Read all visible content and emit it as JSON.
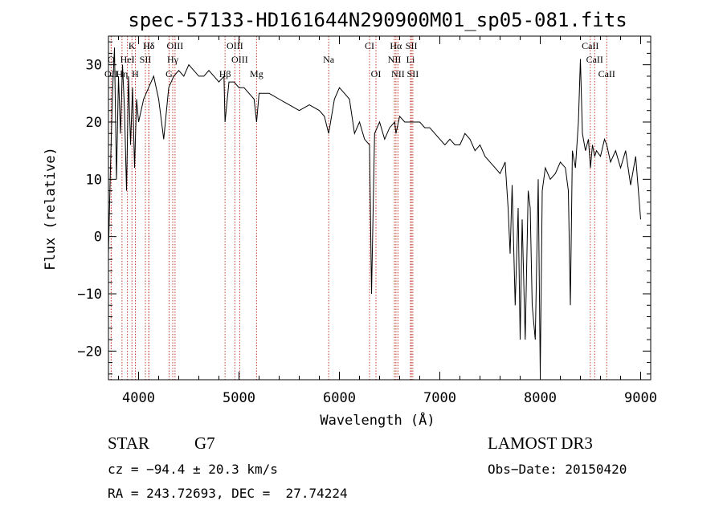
{
  "chart_data": {
    "type": "line",
    "title": "spec-57133-HD161644N290900M01_sp05-081.fits",
    "xlabel": "Wavelength (Å)",
    "ylabel": "Flux (relative)",
    "xlim": [
      3700,
      9100
    ],
    "ylim": [
      -25,
      35
    ],
    "xticks": [
      4000,
      5000,
      6000,
      7000,
      8000,
      9000
    ],
    "yticks": [
      -20,
      -10,
      0,
      10,
      20,
      30
    ],
    "grid": false,
    "series": [
      {
        "x": [
          3700,
          3720,
          3740,
          3760,
          3780,
          3800,
          3820,
          3840,
          3860,
          3880,
          3900,
          3920,
          3940,
          3960,
          3980,
          4000,
          4050,
          4100,
          4150,
          4200,
          4250,
          4300,
          4350,
          4400,
          4450,
          4500,
          4550,
          4600,
          4650,
          4700,
          4750,
          4800,
          4850,
          4861,
          4900,
          4950,
          5000,
          5050,
          5100,
          5150,
          5175,
          5200,
          5300,
          5400,
          5500,
          5600,
          5700,
          5800,
          5850,
          5893,
          5950,
          6000,
          6050,
          6100,
          6150,
          6200,
          6250,
          6300,
          6320,
          6350,
          6400,
          6450,
          6500,
          6550,
          6563,
          6600,
          6650,
          6700,
          6750,
          6800,
          6850,
          6900,
          6950,
          7000,
          7050,
          7100,
          7150,
          7200,
          7250,
          7300,
          7350,
          7400,
          7450,
          7500,
          7550,
          7600,
          7650,
          7680,
          7700,
          7720,
          7750,
          7780,
          7800,
          7820,
          7850,
          7880,
          7900,
          7920,
          7950,
          7980,
          8000,
          8020,
          8050,
          8100,
          8150,
          8200,
          8250,
          8280,
          8300,
          8320,
          8350,
          8380,
          8400,
          8420,
          8450,
          8480,
          8500,
          8520,
          8542,
          8560,
          8600,
          8640,
          8662,
          8700,
          8750,
          8800,
          8850,
          8900,
          8950,
          9000
        ],
        "values": [
          -3,
          12,
          25,
          33,
          10,
          28,
          18,
          30,
          22,
          8,
          28,
          16,
          26,
          12,
          24,
          20,
          24,
          26,
          28,
          24,
          17,
          26,
          28,
          29,
          28,
          30,
          29,
          28,
          28,
          29,
          28,
          27,
          28,
          20,
          27,
          27,
          26,
          26,
          25,
          24,
          20,
          25,
          25,
          24,
          23,
          22,
          23,
          22,
          21,
          18,
          24,
          26,
          25,
          24,
          18,
          20,
          17,
          16,
          -10,
          18,
          20,
          17,
          19,
          20,
          18,
          21,
          20,
          20,
          20,
          20,
          19,
          19,
          18,
          17,
          16,
          17,
          16,
          16,
          18,
          17,
          15,
          16,
          14,
          13,
          12,
          11,
          13,
          5,
          -3,
          9,
          -12,
          5,
          -18,
          3,
          -18,
          8,
          5,
          -12,
          -18,
          10,
          -24,
          8,
          12,
          10,
          11,
          13,
          12,
          8,
          -12,
          15,
          12,
          20,
          31,
          18,
          15,
          17,
          12,
          16,
          14,
          15,
          14,
          17,
          16,
          13,
          15,
          12,
          15,
          9,
          14,
          3
        ],
        "color": "#000000"
      }
    ],
    "lines": [
      {
        "label": "Hδ",
        "x": 4102,
        "row": 1
      },
      {
        "label": "K",
        "x": 3934,
        "row": 1
      },
      {
        "label": "Hδ",
        "x": 4102,
        "row": 1
      },
      {
        "label": "OIII",
        "x": 4363,
        "row": 1
      },
      {
        "label": "OIII",
        "x": 4959,
        "row": 1
      },
      {
        "label": "CI",
        "x": 6300,
        "row": 1
      },
      {
        "label": "Hα",
        "x": 6563,
        "row": 1
      },
      {
        "label": "SII",
        "x": 6717,
        "row": 1
      },
      {
        "label": "CaII",
        "x": 8498,
        "row": 1
      },
      {
        "label": "O",
        "x": 3727,
        "row": 2
      },
      {
        "label": "HeI",
        "x": 3889,
        "row": 2
      },
      {
        "label": "SII",
        "x": 4068,
        "row": 2
      },
      {
        "label": "Hγ",
        "x": 4340,
        "row": 2
      },
      {
        "label": "OIII",
        "x": 5007,
        "row": 2
      },
      {
        "label": "Na",
        "x": 5893,
        "row": 2
      },
      {
        "label": "NII",
        "x": 6548,
        "row": 2
      },
      {
        "label": "Li",
        "x": 6708,
        "row": 2
      },
      {
        "label": "CaII",
        "x": 8542,
        "row": 2
      },
      {
        "label": "OII",
        "x": 3727,
        "row": 3
      },
      {
        "label": "Hη",
        "x": 3835,
        "row": 3
      },
      {
        "label": "H",
        "x": 3968,
        "row": 3
      },
      {
        "label": "G",
        "x": 4304,
        "row": 3
      },
      {
        "label": "Hβ",
        "x": 4861,
        "row": 3
      },
      {
        "label": "Mg",
        "x": 5175,
        "row": 3
      },
      {
        "label": "OI",
        "x": 6364,
        "row": 3
      },
      {
        "label": "NII",
        "x": 6583,
        "row": 3
      },
      {
        "label": "SII",
        "x": 6731,
        "row": 3
      },
      {
        "label": "CaII",
        "x": 8662,
        "row": 3
      }
    ]
  },
  "info": {
    "object_class": "STAR",
    "subclass": "G7",
    "survey": "LAMOST DR3",
    "cz": "cz = −94.4 ± 20.3 km/s",
    "obs_date": "Obs−Date: 20150420",
    "coords": "RA = 243.72693, DEC =  27.74224"
  }
}
